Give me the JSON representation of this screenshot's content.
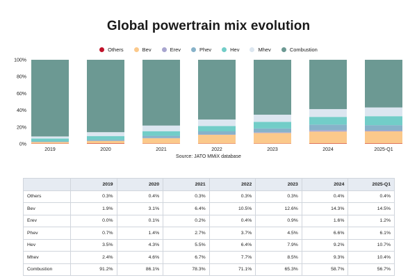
{
  "title": "Global powertrain mix evolution",
  "source": "Source: JATO MMiX database",
  "chart_data": {
    "type": "bar",
    "stacked": true,
    "categories": [
      "2019",
      "2020",
      "2021",
      "2022",
      "2023",
      "2024",
      "2025-Q1"
    ],
    "ylim": [
      0,
      100
    ],
    "yticks": [
      "0%",
      "20%",
      "40%",
      "60%",
      "80%",
      "100%"
    ],
    "legend_position": "top-center",
    "grid": false,
    "series": [
      {
        "name": "Others",
        "color": "#c0132a",
        "values": [
          0.3,
          0.4,
          0.3,
          0.3,
          0.3,
          0.4,
          0.4
        ]
      },
      {
        "name": "Bev",
        "color": "#fbc98b",
        "values": [
          1.9,
          3.1,
          6.4,
          10.5,
          12.6,
          14.3,
          14.5
        ]
      },
      {
        "name": "Erev",
        "color": "#a8a5cf",
        "values": [
          0.0,
          0.1,
          0.2,
          0.4,
          0.9,
          1.6,
          1.2
        ]
      },
      {
        "name": "Phev",
        "color": "#87b2c9",
        "values": [
          0.7,
          1.4,
          2.7,
          3.7,
          4.5,
          6.6,
          6.1
        ]
      },
      {
        "name": "Hev",
        "color": "#72cdc8",
        "values": [
          3.5,
          4.3,
          5.5,
          6.4,
          7.9,
          9.2,
          10.7
        ]
      },
      {
        "name": "Mhev",
        "color": "#dce6f0",
        "values": [
          2.4,
          4.6,
          6.7,
          7.7,
          8.5,
          9.3,
          10.4
        ]
      },
      {
        "name": "Combustion",
        "color": "#6c9993",
        "values": [
          91.2,
          86.1,
          78.3,
          71.1,
          65.3,
          58.7,
          56.7
        ]
      }
    ]
  },
  "table": {
    "headers": [
      "",
      "2019",
      "2020",
      "2021",
      "2022",
      "2023",
      "2024",
      "2025-Q1"
    ],
    "rows": [
      [
        "Others",
        "0.3%",
        "0.4%",
        "0.3%",
        "0.3%",
        "0.3%",
        "0.4%",
        "0.4%"
      ],
      [
        "Bev",
        "1.9%",
        "3.1%",
        "6.4%",
        "10.5%",
        "12.6%",
        "14.3%",
        "14.5%"
      ],
      [
        "Erev",
        "0.0%",
        "0.1%",
        "0.2%",
        "0.4%",
        "0.9%",
        "1.6%",
        "1.2%"
      ],
      [
        "Phev",
        "0.7%",
        "1.4%",
        "2.7%",
        "3.7%",
        "4.5%",
        "6.6%",
        "6.1%"
      ],
      [
        "Hev",
        "3.5%",
        "4.3%",
        "5.5%",
        "6.4%",
        "7.9%",
        "9.2%",
        "10.7%"
      ],
      [
        "Mhev",
        "2.4%",
        "4.6%",
        "6.7%",
        "7.7%",
        "8.5%",
        "9.3%",
        "10.4%"
      ],
      [
        "Combustion",
        "91.2%",
        "86.1%",
        "78.3%",
        "71.1%",
        "65.3%",
        "58.7%",
        "56.7%"
      ]
    ]
  }
}
